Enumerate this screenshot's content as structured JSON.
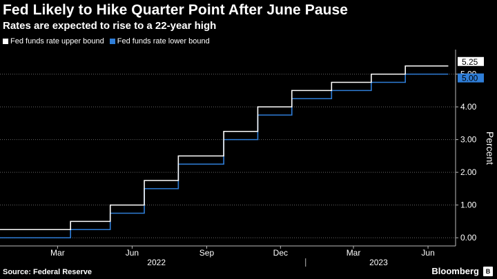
{
  "title": "Fed Likely to Hike Quarter Point After June Pause",
  "subtitle": "Rates are expected to rise to a 22-year high",
  "source": "Source: Federal Reserve",
  "brand": "Bloomberg",
  "brand_icon": "bloomberg-logo-icon",
  "colors": {
    "background": "#000000",
    "upper": "#ffffff",
    "lower": "#2f7ed8",
    "grid": "#6a6a6a"
  },
  "chart_data": {
    "type": "line",
    "title": "Fed Likely to Hike Quarter Point After June Pause",
    "subtitle": "Rates are expected to rise to a 22-year high",
    "ylabel": "Percent",
    "ylim": [
      -0.25,
      5.75
    ],
    "y_ticks": [
      0,
      1,
      2,
      3,
      4,
      5
    ],
    "y_tick_labels": [
      "0.00",
      "1.00",
      "2.00",
      "3.00",
      "4.00",
      "5.00"
    ],
    "x_ticks": [
      "Mar",
      "Jun",
      "Sep",
      "Dec",
      "Mar",
      "Jun"
    ],
    "x_tick_dates": [
      "2022-03-01",
      "2022-06-01",
      "2022-09-01",
      "2022-12-01",
      "2023-03-01",
      "2023-06-01"
    ],
    "x_year_labels": [
      "2022",
      "2023"
    ],
    "x_year_dates": [
      "2022-07-01",
      "2023-04-01"
    ],
    "x_range": [
      "2021-12-20",
      "2023-07-05"
    ],
    "grid": true,
    "legend_position": "top-left",
    "series": [
      {
        "name": "Fed funds rate upper bound",
        "color": "#ffffff",
        "end_label": "5.25",
        "steps": [
          {
            "date": "2021-12-20",
            "value": 0.25
          },
          {
            "date": "2022-03-17",
            "value": 0.5
          },
          {
            "date": "2022-05-05",
            "value": 1.0
          },
          {
            "date": "2022-06-16",
            "value": 1.75
          },
          {
            "date": "2022-07-28",
            "value": 2.5
          },
          {
            "date": "2022-09-22",
            "value": 3.25
          },
          {
            "date": "2022-11-03",
            "value": 4.0
          },
          {
            "date": "2022-12-15",
            "value": 4.5
          },
          {
            "date": "2023-02-02",
            "value": 4.75
          },
          {
            "date": "2023-03-23",
            "value": 5.0
          },
          {
            "date": "2023-05-04",
            "value": 5.25
          },
          {
            "date": "2023-06-26",
            "value": 5.25
          }
        ]
      },
      {
        "name": "Fed funds rate lower bound",
        "color": "#2f7ed8",
        "end_label": "5.00",
        "steps": [
          {
            "date": "2021-12-20",
            "value": 0.0
          },
          {
            "date": "2022-03-17",
            "value": 0.25
          },
          {
            "date": "2022-05-05",
            "value": 0.75
          },
          {
            "date": "2022-06-16",
            "value": 1.5
          },
          {
            "date": "2022-07-28",
            "value": 2.25
          },
          {
            "date": "2022-09-22",
            "value": 3.0
          },
          {
            "date": "2022-11-03",
            "value": 3.75
          },
          {
            "date": "2022-12-15",
            "value": 4.25
          },
          {
            "date": "2023-02-02",
            "value": 4.5
          },
          {
            "date": "2023-03-23",
            "value": 4.75
          },
          {
            "date": "2023-05-04",
            "value": 5.0
          },
          {
            "date": "2023-06-26",
            "value": 5.0
          }
        ]
      }
    ]
  }
}
